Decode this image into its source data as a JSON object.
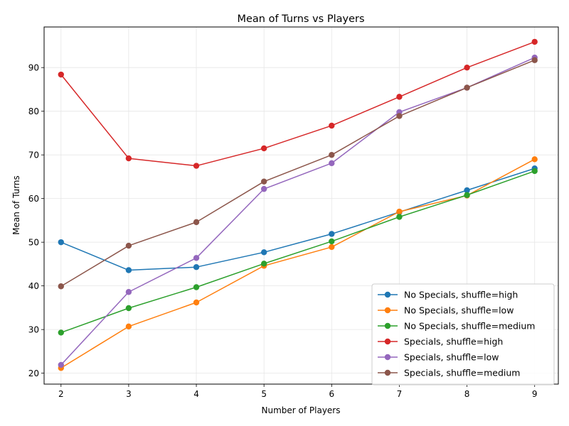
{
  "chart_data": {
    "type": "line",
    "title": "Mean of Turns vs Players",
    "xlabel": "Number of Players",
    "ylabel": "Mean of Turns",
    "x": [
      2,
      3,
      4,
      5,
      6,
      7,
      8,
      9
    ],
    "xlim": [
      1.75,
      9.35
    ],
    "ylim": [
      17.5,
      99.3
    ],
    "xticks": [
      2,
      3,
      4,
      5,
      6,
      7,
      8,
      9
    ],
    "yticks": [
      20,
      30,
      40,
      50,
      60,
      70,
      80,
      90
    ],
    "grid": true,
    "legend_position": "lower-right",
    "series": [
      {
        "name": "No Specials, shuffle=high",
        "color": "#1f77b4",
        "values": [
          50.0,
          43.6,
          44.3,
          47.7,
          51.9,
          56.9,
          61.9,
          66.9
        ]
      },
      {
        "name": "No Specials, shuffle=low",
        "color": "#ff7f0e",
        "values": [
          21.2,
          30.7,
          36.2,
          44.6,
          48.9,
          57.0,
          60.7,
          69.0
        ]
      },
      {
        "name": "No Specials, shuffle=medium",
        "color": "#2ca02c",
        "values": [
          29.3,
          34.9,
          39.7,
          45.1,
          50.2,
          55.8,
          60.8,
          66.3
        ]
      },
      {
        "name": "Specials, shuffle=high",
        "color": "#d62728",
        "values": [
          88.4,
          69.2,
          67.5,
          71.5,
          76.7,
          83.3,
          90.0,
          95.9
        ]
      },
      {
        "name": "Specials, shuffle=low",
        "color": "#9467bd",
        "values": [
          21.9,
          38.6,
          46.4,
          62.2,
          68.1,
          79.8,
          85.4,
          92.3
        ]
      },
      {
        "name": "Specials, shuffle=medium",
        "color": "#8c564b",
        "values": [
          39.9,
          49.2,
          54.6,
          63.9,
          70.0,
          78.9,
          85.4,
          91.7
        ]
      }
    ]
  }
}
